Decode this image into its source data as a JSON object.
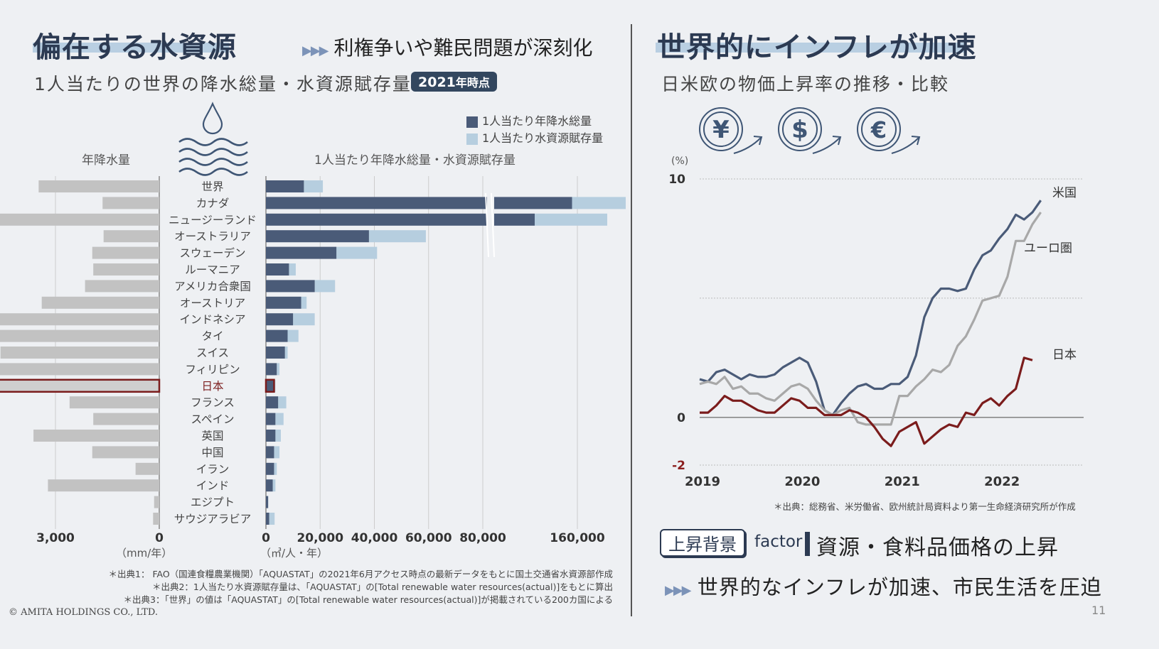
{
  "left": {
    "title": "偏在する水資源",
    "tagline": "利権争いや難民問題が深刻化",
    "subtitle": "1人当たりの世界の降水総量・水資源賦存量",
    "badge_year": "2021",
    "badge_suffix": "年時点",
    "legend": [
      "1人当たり年降水総量",
      "1人当たり水資源賦存量"
    ],
    "left_axis_title": "年降水量",
    "right_axis_title": "1人当たり年降水総量・水資源賦存量",
    "left_unit": "（mm/年）",
    "right_unit": "（㎥/人・年）",
    "sources": [
      "＊出典1： FAO（国連食糧農業機関）「AQUASTAT」の2021年6月アクセス時点の最新データをもとに国土交通省水資源部作成",
      "＊出典2：1人当たり水資源賦存量は、「AQUASTAT」の[Total renewable water resources(actual)]をもとに算出",
      "＊出典3：「世界」の値は「AQUASTAT」の[Total renewable water resources(actual)]が掲載されている200カ国による"
    ]
  },
  "right": {
    "title": "世界的にインフレが加速",
    "subtitle": "日米欧の物価上昇率の推移・比較",
    "currency_icons": [
      "yen-icon",
      "dollar-icon",
      "euro-icon"
    ],
    "source": "＊出典：総務省、米労働省、欧州統計局資料より第一生命経済研究所が作成",
    "factor_label": "上昇背景",
    "factor_word": "factor",
    "factor_text": "資源・食料品価格の上昇",
    "bottom_text": "世界的なインフレが加速、市民生活を圧迫"
  },
  "footer": {
    "copyright": "© AMITA HOLDINGS CO., LTD.",
    "page": "11"
  },
  "colors": {
    "dark_bar": "#4a5b78",
    "light_bar": "#b6cedf",
    "grey_bar": "#c2c2c2",
    "japan": "#7b1c1c",
    "us": "#4a5b78",
    "euro": "#a8a8a8"
  },
  "chart_data": [
    {
      "type": "bar",
      "orientation": "horizontal",
      "categories": [
        "世界",
        "カナダ",
        "ニュージーランド",
        "オーストラリア",
        "スウェーデン",
        "ルーマニア",
        "アメリカ合衆国",
        "オーストリア",
        "インドネシア",
        "タイ",
        "スイス",
        "フィリピン",
        "日本",
        "フランス",
        "スペイン",
        "英国",
        "中国",
        "イラン",
        "インド",
        "エジプト",
        "サウジアラビア"
      ],
      "highlight": "日本",
      "series": [
        {
          "name": "年降水量",
          "unit": "mm/年",
          "values": [
            1170,
            550,
            1730,
            540,
            650,
            640,
            720,
            1140,
            2700,
            1620,
            1540,
            2350,
            1710,
            870,
            640,
            1220,
            650,
            230,
            1080,
            50,
            60
          ]
        },
        {
          "name": "1人当たり年降水総量",
          "unit": "㎥/人・年",
          "values": [
            14000,
            155000,
            120000,
            38000,
            26000,
            8500,
            18000,
            13000,
            10000,
            8000,
            7000,
            4000,
            3000,
            4500,
            3500,
            3500,
            3000,
            3000,
            2500,
            800,
            1200
          ]
        },
        {
          "name": "1人当たり水資源賦存量",
          "unit": "㎥/人・年",
          "values": [
            7000,
            73000,
            68000,
            21000,
            15000,
            2500,
            7500,
            2000,
            8000,
            4000,
            1000,
            1000,
            500,
            3000,
            3000,
            2000,
            2000,
            1000,
            1000,
            100,
            2000
          ]
        }
      ],
      "left_ticks": [
        "3,000",
        "0"
      ],
      "right_ticks": [
        "0",
        "20,000",
        "40,000",
        "60,000",
        "80,000",
        "160,000"
      ],
      "xlim_left": [
        3000,
        0
      ],
      "xlim_right": [
        0,
        160000
      ],
      "axis_break": "80,000–160,000"
    },
    {
      "type": "line",
      "ylabel": "(%)",
      "ylim": [
        -2,
        10
      ],
      "y_ticks": [
        "10",
        "0",
        "-2"
      ],
      "x_ticks": [
        "2019",
        "2020",
        "2021",
        "2022"
      ],
      "series": [
        {
          "name": "米国",
          "start": "2019-01",
          "values": [
            1.6,
            1.5,
            1.9,
            2.0,
            1.8,
            1.6,
            1.8,
            1.7,
            1.7,
            1.8,
            2.1,
            2.3,
            2.5,
            2.3,
            1.5,
            0.3,
            0.1,
            0.6,
            1.0,
            1.3,
            1.4,
            1.2,
            1.2,
            1.4,
            1.4,
            1.7,
            2.6,
            4.2,
            5.0,
            5.4,
            5.4,
            5.3,
            5.4,
            6.2,
            6.8,
            7.0,
            7.5,
            7.9,
            8.5,
            8.3,
            8.6,
            9.1
          ]
        },
        {
          "name": "ユーロ圏",
          "start": "2019-01",
          "values": [
            1.4,
            1.5,
            1.4,
            1.7,
            1.2,
            1.3,
            1.0,
            1.0,
            0.8,
            0.7,
            1.0,
            1.3,
            1.4,
            1.2,
            0.7,
            0.3,
            0.1,
            0.3,
            0.4,
            -0.2,
            -0.3,
            -0.3,
            -0.3,
            -0.3,
            0.9,
            0.9,
            1.3,
            1.6,
            2.0,
            1.9,
            2.2,
            3.0,
            3.4,
            4.1,
            4.9,
            5.0,
            5.1,
            5.9,
            7.4,
            7.4,
            8.1,
            8.6
          ]
        },
        {
          "name": "日本",
          "start": "2019-01",
          "values": [
            0.2,
            0.2,
            0.5,
            0.9,
            0.7,
            0.7,
            0.5,
            0.3,
            0.2,
            0.2,
            0.5,
            0.8,
            0.7,
            0.4,
            0.4,
            0.1,
            0.1,
            0.1,
            0.3,
            0.2,
            0.0,
            -0.4,
            -0.9,
            -1.2,
            -0.6,
            -0.4,
            -0.2,
            -1.1,
            -0.8,
            -0.5,
            -0.3,
            -0.4,
            0.2,
            0.1,
            0.6,
            0.8,
            0.5,
            0.9,
            1.2,
            2.5,
            2.4
          ]
        }
      ]
    }
  ]
}
